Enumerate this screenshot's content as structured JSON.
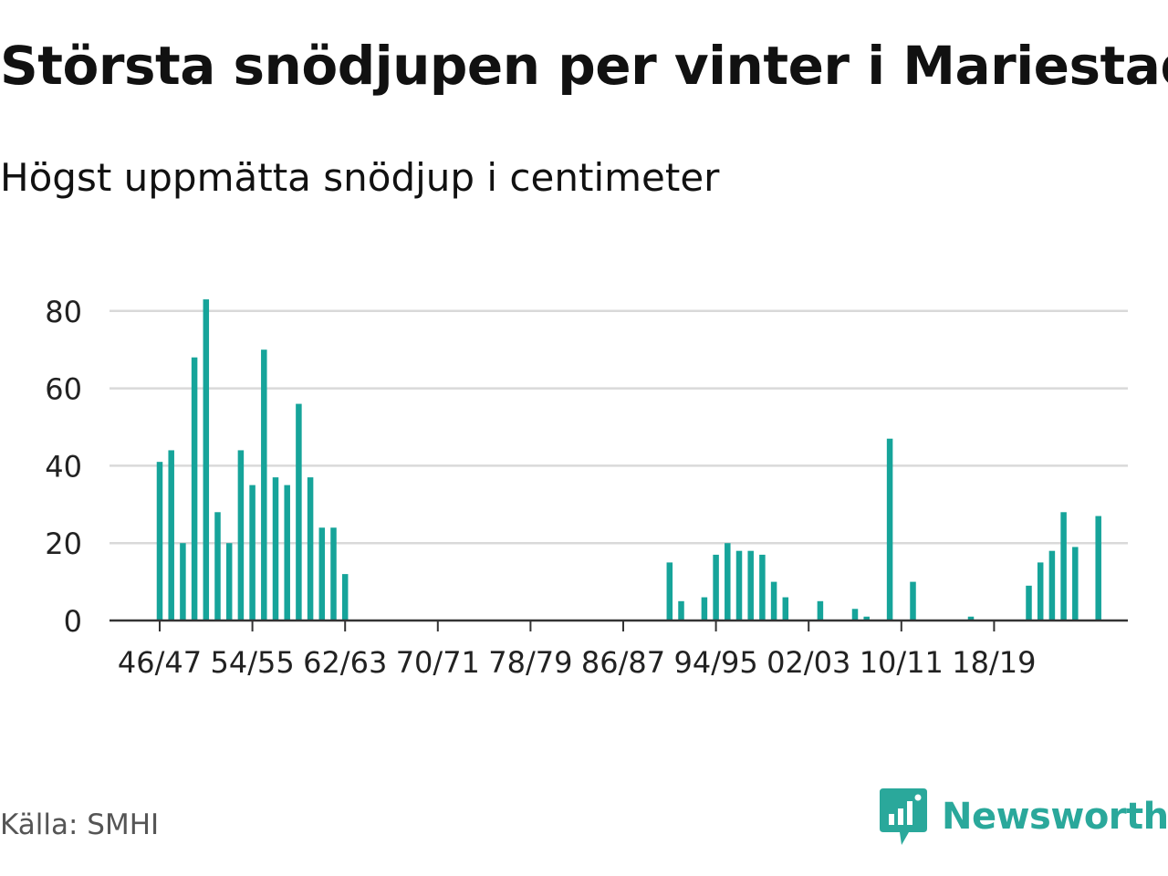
{
  "title": "Största snödjupen per vinter i Mariestad",
  "subtitle": "Högst uppmätta snödjup i centimeter",
  "source": "Källa: SMHI",
  "brand": "Newsworthy",
  "colors": {
    "bar": "#16a49a",
    "grid": "#d9d9d9",
    "axis": "#333333",
    "brand": "#2aa89b"
  },
  "chart_data": {
    "type": "bar",
    "title": "Största snödjupen per vinter i Mariestad",
    "subtitle": "Högst uppmätta snödjup i centimeter",
    "xlabel": "",
    "ylabel": "",
    "ylim": [
      0,
      80
    ],
    "yticks": [
      0,
      20,
      40,
      60,
      80
    ],
    "grid": true,
    "categories": [
      "46/47",
      "47/48",
      "48/49",
      "49/50",
      "50/51",
      "51/52",
      "52/53",
      "53/54",
      "54/55",
      "55/56",
      "56/57",
      "57/58",
      "58/59",
      "59/60",
      "60/61",
      "61/62",
      "62/63",
      "63/64",
      "64/65",
      "65/66",
      "66/67",
      "67/68",
      "68/69",
      "69/70",
      "70/71",
      "71/72",
      "72/73",
      "73/74",
      "74/75",
      "75/76",
      "76/77",
      "77/78",
      "78/79",
      "79/80",
      "80/81",
      "81/82",
      "82/83",
      "83/84",
      "84/85",
      "85/86",
      "86/87",
      "87/88",
      "88/89",
      "89/90",
      "90/91",
      "91/92",
      "92/93",
      "93/94",
      "94/95",
      "95/96",
      "96/97",
      "97/98",
      "98/99",
      "99/00",
      "00/01",
      "01/02",
      "02/03",
      "03/04",
      "04/05",
      "05/06",
      "06/07",
      "07/08",
      "08/09",
      "09/10",
      "10/11",
      "11/12",
      "12/13",
      "13/14",
      "14/15",
      "15/16",
      "16/17",
      "17/18",
      "18/19",
      "19/20",
      "20/21",
      "21/22",
      "22/23",
      "23/24",
      "24/25",
      "25/26",
      "26/27",
      "27/28",
      "28/29",
      "29/30"
    ],
    "values": [
      41,
      44,
      20,
      68,
      83,
      28,
      20,
      44,
      35,
      70,
      37,
      35,
      56,
      37,
      24,
      24,
      12,
      null,
      null,
      null,
      null,
      null,
      null,
      null,
      null,
      null,
      null,
      null,
      null,
      null,
      null,
      null,
      null,
      null,
      null,
      null,
      null,
      null,
      null,
      null,
      null,
      null,
      null,
      null,
      15,
      5,
      null,
      6,
      17,
      20,
      18,
      18,
      17,
      10,
      6,
      null,
      null,
      5,
      null,
      null,
      3,
      1,
      null,
      47,
      null,
      10,
      null,
      null,
      null,
      null,
      1,
      null,
      null,
      null,
      null,
      9,
      15,
      18,
      28,
      19,
      null,
      27,
      null,
      null
    ],
    "tick_labels": [
      "46/47",
      "54/55",
      "62/63",
      "70/71",
      "78/79",
      "86/87",
      "94/95",
      "02/03",
      "10/11",
      "18/19"
    ]
  }
}
